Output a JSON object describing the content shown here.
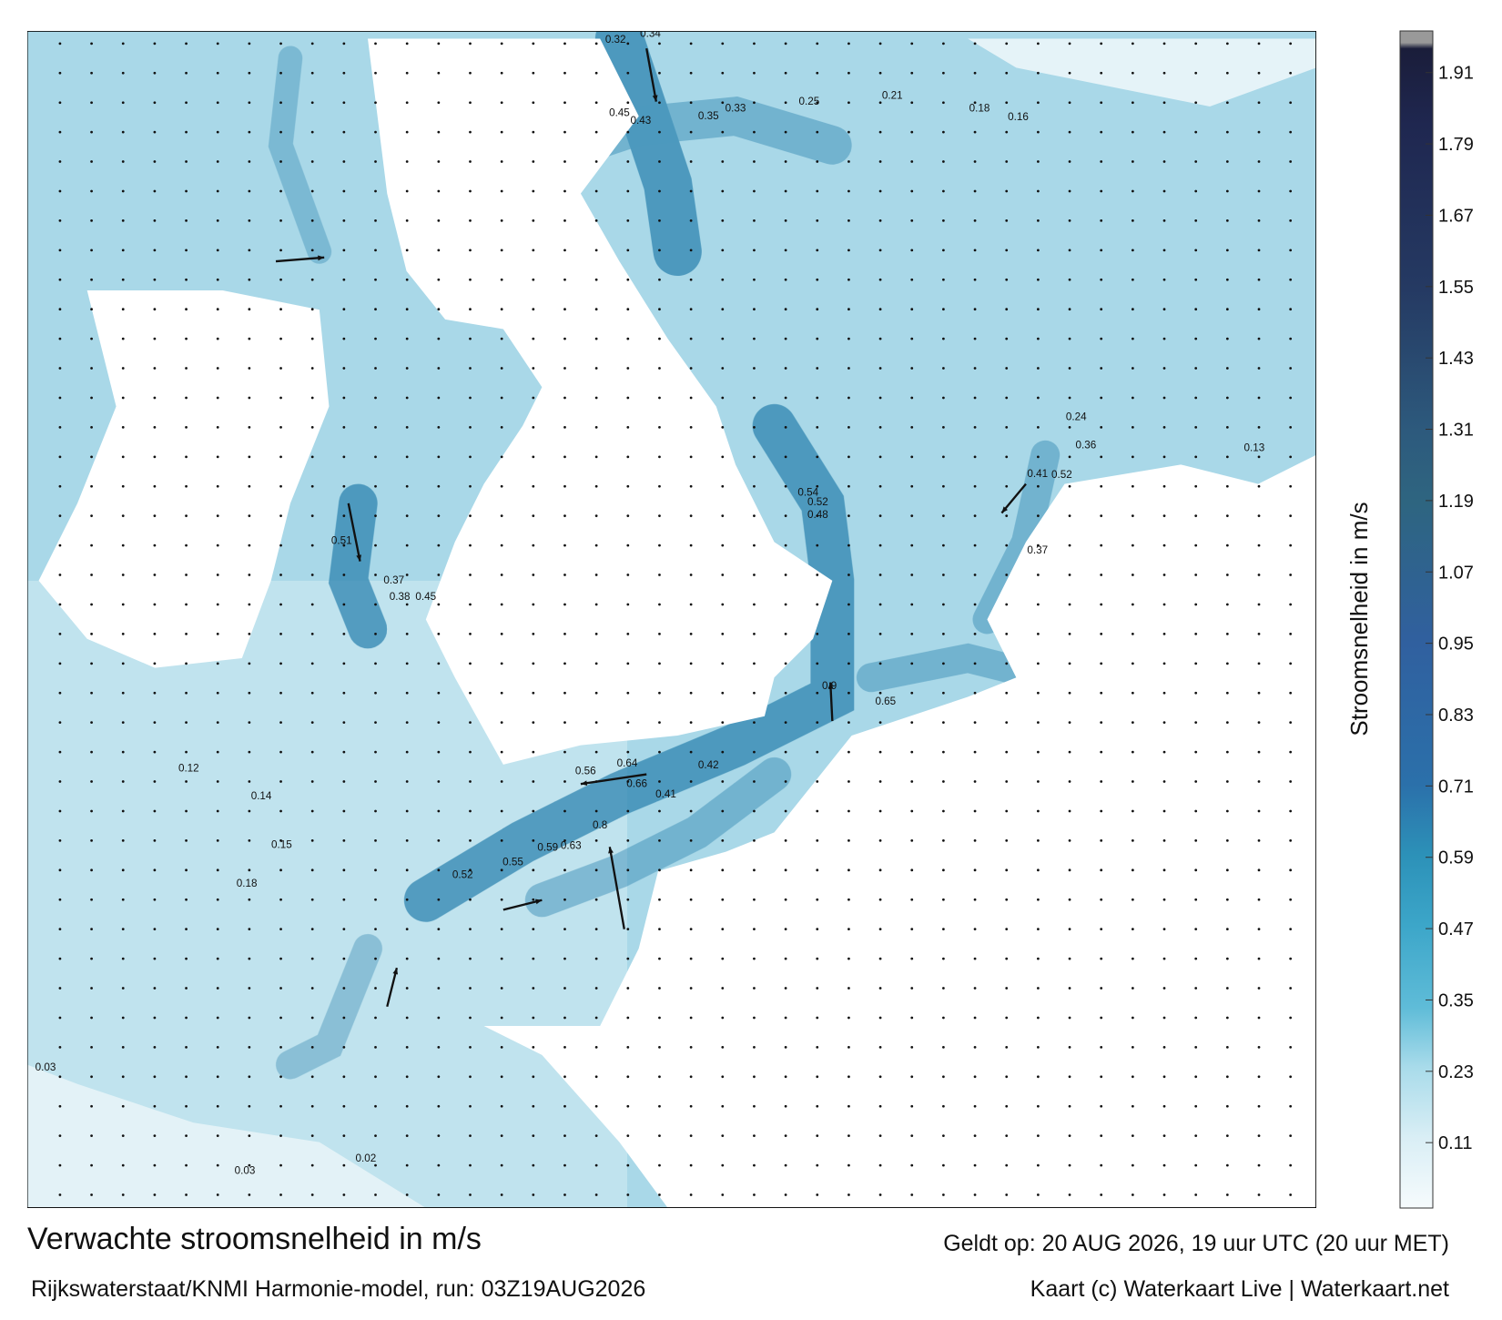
{
  "map": {
    "title": "Verwachte stroomsnelheid in m/s",
    "valid_time": "Geldt op: 20 AUG 2026, 19 uur UTC (20 uur MET)",
    "source": "Rijkswaterstaat/KNMI Harmonie-model, run: 03Z19AUG2026",
    "credit": "Kaart (c) Waterkaart Live | Waterkaart.net",
    "colorbar": {
      "label": "Stroomsnelheid in m/s",
      "lim": [
        0,
        1.98
      ],
      "ticks": [
        0.11,
        0.23,
        0.35,
        0.47,
        0.59,
        0.71,
        0.83,
        0.95,
        1.07,
        1.19,
        1.31,
        1.43,
        1.55,
        1.67,
        1.79,
        1.91
      ]
    },
    "speed_labels": [
      0.34,
      0.32,
      0.45,
      0.43,
      0.35,
      0.33,
      0.25,
      0.21,
      0.18,
      0.16,
      0.37,
      0.38,
      0.45,
      0.51,
      0.54,
      0.52,
      0.48,
      0.9,
      0.65,
      0.64,
      0.66,
      0.56,
      0.8,
      0.59,
      0.63,
      0.55,
      0.52,
      0.42,
      0.41,
      0.37,
      0.41,
      0.52,
      0.24,
      0.36,
      0.13,
      0.14,
      0.15,
      0.18,
      0.12,
      0.03,
      0.03,
      0.02
    ]
  }
}
